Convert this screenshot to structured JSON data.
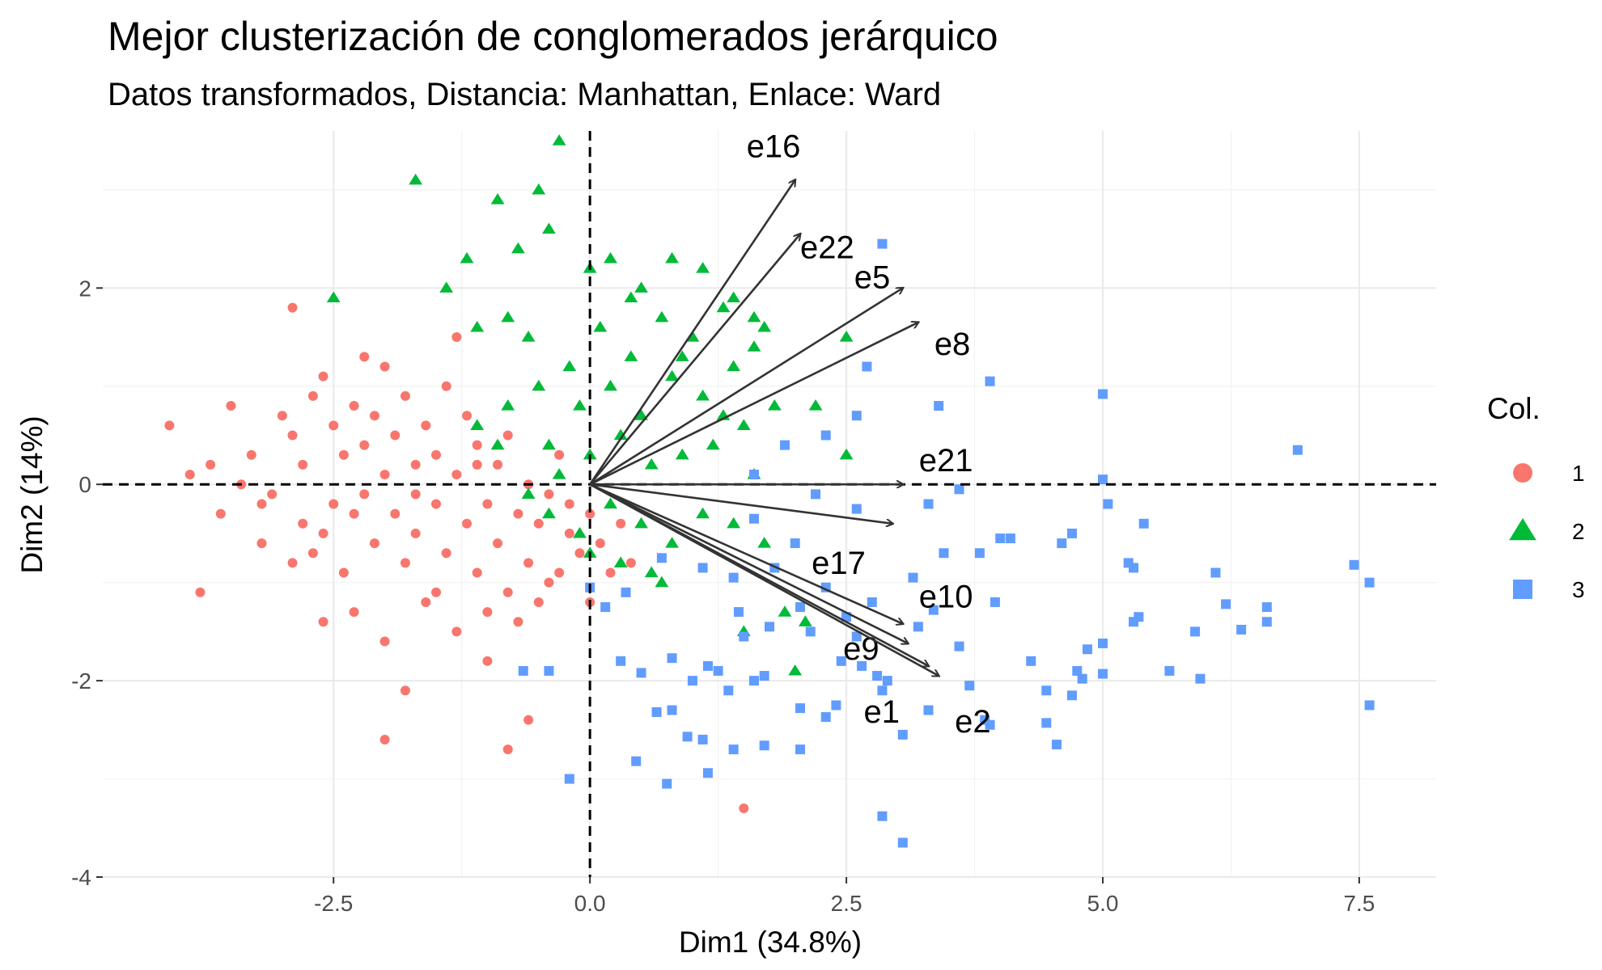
{
  "chart_data": {
    "type": "scatter",
    "title": "Mejor clusterización de conglomerados jerárquico",
    "subtitle": "Datos transformados, Distancia: Manhattan, Enlace: Ward",
    "xlabel": "Dim1 (34.8%)",
    "ylabel": "Dim2 (14%)",
    "xlim": [
      -4.75,
      8.25
    ],
    "ylim": [
      -4.0,
      3.6
    ],
    "x_ticks": [
      -2.5,
      0.0,
      2.5,
      5.0,
      7.5
    ],
    "x_tick_labels": [
      "-2.5",
      "0.0",
      "2.5",
      "5.0",
      "7.5"
    ],
    "y_ticks": [
      -4,
      -2,
      0,
      2
    ],
    "y_tick_labels": [
      "-4",
      "-2",
      "0",
      "2"
    ],
    "grid": true,
    "reference_lines": {
      "x": 0,
      "y": 0,
      "style": "dashed"
    },
    "legend": {
      "title": "Col.",
      "position": "right"
    },
    "series": [
      {
        "name": "1",
        "shape": "circle",
        "color": "#F8766D",
        "points": [
          [
            -4.1,
            0.6
          ],
          [
            -3.9,
            0.1
          ],
          [
            -3.7,
            0.2
          ],
          [
            -3.6,
            -0.3
          ],
          [
            -3.8,
            -1.1
          ],
          [
            -3.5,
            0.8
          ],
          [
            -3.3,
            0.3
          ],
          [
            -3.2,
            -0.6
          ],
          [
            -3.1,
            -0.1
          ],
          [
            -3.0,
            0.7
          ],
          [
            -2.9,
            -0.8
          ],
          [
            -2.9,
            0.5
          ],
          [
            -2.8,
            -0.4
          ],
          [
            -2.8,
            0.2
          ],
          [
            -2.7,
            0.9
          ],
          [
            -2.6,
            1.1
          ],
          [
            -2.6,
            -0.5
          ],
          [
            -2.5,
            0.6
          ],
          [
            -2.5,
            -0.2
          ],
          [
            -2.4,
            -0.9
          ],
          [
            -2.4,
            0.3
          ],
          [
            -2.3,
            0.8
          ],
          [
            -2.3,
            -1.3
          ],
          [
            -2.2,
            -0.1
          ],
          [
            -2.2,
            0.4
          ],
          [
            -2.1,
            0.7
          ],
          [
            -2.1,
            -0.6
          ],
          [
            -2.0,
            -1.6
          ],
          [
            -2.0,
            0.1
          ],
          [
            -2.0,
            1.2
          ],
          [
            -1.9,
            -0.3
          ],
          [
            -1.9,
            0.5
          ],
          [
            -1.8,
            -0.8
          ],
          [
            -1.8,
            0.9
          ],
          [
            -1.8,
            -2.1
          ],
          [
            -1.7,
            0.2
          ],
          [
            -1.7,
            -0.5
          ],
          [
            -1.6,
            -1.2
          ],
          [
            -1.6,
            0.6
          ],
          [
            -1.5,
            -0.2
          ],
          [
            -1.5,
            0.3
          ],
          [
            -1.4,
            -0.7
          ],
          [
            -1.4,
            1.0
          ],
          [
            -1.3,
            -1.5
          ],
          [
            -1.3,
            0.1
          ],
          [
            -1.2,
            -0.4
          ],
          [
            -1.2,
            0.7
          ],
          [
            -1.1,
            -0.9
          ],
          [
            -1.1,
            0.4
          ],
          [
            -1.0,
            -1.8
          ],
          [
            -1.0,
            -0.2
          ],
          [
            -0.9,
            0.2
          ],
          [
            -0.9,
            -0.6
          ],
          [
            -0.8,
            -1.1
          ],
          [
            -0.8,
            0.5
          ],
          [
            -0.7,
            -0.3
          ],
          [
            -0.7,
            -1.4
          ],
          [
            -0.6,
            0.0
          ],
          [
            -0.6,
            -0.8
          ],
          [
            -0.5,
            -0.4
          ],
          [
            -0.4,
            -0.1
          ],
          [
            -0.4,
            -1.0
          ],
          [
            -0.3,
            0.3
          ],
          [
            -0.2,
            -0.5
          ],
          [
            -0.2,
            -0.2
          ],
          [
            -0.1,
            -0.7
          ],
          [
            0.0,
            -0.3
          ],
          [
            0.1,
            -0.6
          ],
          [
            0.2,
            -0.9
          ],
          [
            0.3,
            -0.4
          ],
          [
            -2.9,
            1.8
          ],
          [
            -2.2,
            1.3
          ],
          [
            -2.0,
            -2.6
          ],
          [
            -1.3,
            1.5
          ],
          [
            -0.8,
            -2.7
          ],
          [
            -0.6,
            -2.4
          ],
          [
            1.5,
            -3.3
          ],
          [
            -3.2,
            -0.2
          ],
          [
            -2.6,
            -1.4
          ],
          [
            -1.5,
            -1.1
          ],
          [
            -1.0,
            -1.3
          ],
          [
            -0.5,
            -1.2
          ],
          [
            -1.7,
            -0.1
          ],
          [
            -2.7,
            -0.7
          ],
          [
            -3.4,
            0.0
          ],
          [
            -2.3,
            -0.3
          ],
          [
            -1.1,
            0.2
          ],
          [
            -0.3,
            -0.9
          ],
          [
            0.0,
            -1.2
          ],
          [
            0.4,
            -0.8
          ]
        ]
      },
      {
        "name": "2",
        "shape": "triangle",
        "color": "#00BA38",
        "points": [
          [
            -0.3,
            3.5
          ],
          [
            -1.7,
            3.1
          ],
          [
            -0.9,
            2.9
          ],
          [
            -0.5,
            3.0
          ],
          [
            -0.7,
            2.4
          ],
          [
            -0.4,
            2.6
          ],
          [
            -1.2,
            2.3
          ],
          [
            -2.5,
            1.9
          ],
          [
            -1.4,
            2.0
          ],
          [
            -0.8,
            1.7
          ],
          [
            -1.1,
            1.6
          ],
          [
            -0.6,
            1.5
          ],
          [
            0.0,
            2.2
          ],
          [
            0.2,
            2.3
          ],
          [
            0.5,
            2.0
          ],
          [
            0.8,
            2.3
          ],
          [
            1.1,
            2.2
          ],
          [
            1.4,
            1.9
          ],
          [
            1.6,
            1.7
          ],
          [
            1.7,
            1.6
          ],
          [
            1.3,
            1.8
          ],
          [
            1.0,
            1.5
          ],
          [
            0.7,
            1.7
          ],
          [
            0.4,
            1.3
          ],
          [
            0.1,
            1.6
          ],
          [
            -0.2,
            1.2
          ],
          [
            -0.5,
            1.0
          ],
          [
            -0.8,
            0.8
          ],
          [
            -1.1,
            0.6
          ],
          [
            -0.4,
            0.4
          ],
          [
            -0.1,
            0.8
          ],
          [
            0.2,
            1.0
          ],
          [
            0.5,
            0.7
          ],
          [
            0.8,
            1.1
          ],
          [
            1.1,
            0.9
          ],
          [
            1.4,
            1.2
          ],
          [
            1.6,
            1.4
          ],
          [
            1.8,
            0.8
          ],
          [
            1.5,
            0.6
          ],
          [
            1.2,
            0.4
          ],
          [
            0.9,
            0.3
          ],
          [
            0.6,
            0.2
          ],
          [
            0.3,
            0.5
          ],
          [
            0.0,
            0.3
          ],
          [
            -0.3,
            0.1
          ],
          [
            -0.6,
            -0.1
          ],
          [
            -0.9,
            0.4
          ],
          [
            -0.4,
            -0.3
          ],
          [
            -0.1,
            -0.5
          ],
          [
            0.2,
            -0.2
          ],
          [
            0.5,
            -0.4
          ],
          [
            0.8,
            -0.6
          ],
          [
            1.1,
            -0.3
          ],
          [
            1.4,
            -0.4
          ],
          [
            1.7,
            -0.6
          ],
          [
            0.6,
            -0.9
          ],
          [
            0.3,
            -0.8
          ],
          [
            0.0,
            -0.7
          ],
          [
            1.9,
            -1.3
          ],
          [
            2.1,
            -1.4
          ],
          [
            2.5,
            1.5
          ],
          [
            2.2,
            0.8
          ],
          [
            2.5,
            0.3
          ],
          [
            1.5,
            -1.5
          ],
          [
            2.0,
            -1.9
          ],
          [
            0.7,
            -1.0
          ],
          [
            0.9,
            1.3
          ],
          [
            1.3,
            0.7
          ],
          [
            0.4,
            1.9
          ],
          [
            1.6,
            0.1
          ]
        ]
      },
      {
        "name": "3",
        "shape": "square",
        "color": "#619CFF",
        "points": [
          [
            2.85,
            2.45
          ],
          [
            2.7,
            1.2
          ],
          [
            2.6,
            0.7
          ],
          [
            3.4,
            0.8
          ],
          [
            3.9,
            1.05
          ],
          [
            5.0,
            0.92
          ],
          [
            6.9,
            0.35
          ],
          [
            2.3,
            0.5
          ],
          [
            1.9,
            0.4
          ],
          [
            1.6,
            0.1
          ],
          [
            2.2,
            -0.1
          ],
          [
            2.6,
            -0.25
          ],
          [
            3.3,
            -0.2
          ],
          [
            3.6,
            -0.05
          ],
          [
            4.1,
            -0.55
          ],
          [
            5.0,
            0.05
          ],
          [
            5.05,
            -0.2
          ],
          [
            5.4,
            -0.4
          ],
          [
            4.7,
            -0.5
          ],
          [
            4.6,
            -0.6
          ],
          [
            5.25,
            -0.8
          ],
          [
            5.3,
            -0.85
          ],
          [
            7.45,
            -0.82
          ],
          [
            7.6,
            -1.0
          ],
          [
            6.2,
            -1.22
          ],
          [
            6.6,
            -1.25
          ],
          [
            6.6,
            -1.4
          ],
          [
            6.35,
            -1.48
          ],
          [
            5.35,
            -1.35
          ],
          [
            5.3,
            -1.4
          ],
          [
            5.0,
            -1.62
          ],
          [
            4.85,
            -1.68
          ],
          [
            4.75,
            -1.9
          ],
          [
            5.0,
            -1.93
          ],
          [
            5.65,
            -1.9
          ],
          [
            5.95,
            -1.98
          ],
          [
            7.6,
            -2.25
          ],
          [
            4.45,
            -2.1
          ],
          [
            4.7,
            -2.15
          ],
          [
            4.8,
            -1.98
          ],
          [
            4.45,
            -2.43
          ],
          [
            4.55,
            -2.65
          ],
          [
            3.85,
            -2.4
          ],
          [
            3.9,
            -2.45
          ],
          [
            3.3,
            -2.3
          ],
          [
            3.05,
            -2.55
          ],
          [
            2.85,
            -2.1
          ],
          [
            2.9,
            -2.0
          ],
          [
            2.8,
            -1.95
          ],
          [
            2.65,
            -1.85
          ],
          [
            2.4,
            -2.25
          ],
          [
            2.3,
            -2.37
          ],
          [
            2.05,
            -2.28
          ],
          [
            1.7,
            -1.95
          ],
          [
            1.6,
            -2.0
          ],
          [
            1.35,
            -2.1
          ],
          [
            1.15,
            -1.85
          ],
          [
            1.25,
            -1.9
          ],
          [
            1.0,
            -2.0
          ],
          [
            0.8,
            -1.77
          ],
          [
            0.5,
            -1.92
          ],
          [
            0.3,
            -1.8
          ],
          [
            0.65,
            -2.32
          ],
          [
            0.8,
            -2.3
          ],
          [
            0.95,
            -2.57
          ],
          [
            1.1,
            -2.6
          ],
          [
            1.4,
            -2.7
          ],
          [
            1.15,
            -2.94
          ],
          [
            0.75,
            -3.05
          ],
          [
            0.45,
            -2.82
          ],
          [
            -0.2,
            -3.0
          ],
          [
            -0.4,
            -1.9
          ],
          [
            -0.65,
            -1.9
          ],
          [
            2.05,
            -2.7
          ],
          [
            1.7,
            -2.66
          ],
          [
            2.85,
            -3.38
          ],
          [
            3.05,
            -3.65
          ],
          [
            3.2,
            -1.45
          ],
          [
            3.35,
            -1.28
          ],
          [
            3.6,
            -1.65
          ],
          [
            3.95,
            -1.2
          ],
          [
            3.15,
            -0.95
          ],
          [
            3.45,
            -0.7
          ],
          [
            3.8,
            -0.7
          ],
          [
            4.0,
            -0.55
          ],
          [
            2.75,
            -1.2
          ],
          [
            2.5,
            -1.35
          ],
          [
            2.6,
            -1.55
          ],
          [
            2.45,
            -1.8
          ],
          [
            2.15,
            -1.5
          ],
          [
            2.05,
            -1.25
          ],
          [
            1.75,
            -1.45
          ],
          [
            1.5,
            -1.55
          ],
          [
            1.45,
            -1.3
          ],
          [
            1.4,
            -0.95
          ],
          [
            1.1,
            -0.85
          ],
          [
            0.7,
            -0.75
          ],
          [
            0.35,
            -1.1
          ],
          [
            0.15,
            -1.25
          ],
          [
            0.0,
            -1.05
          ],
          [
            2.0,
            -0.6
          ],
          [
            1.6,
            -0.35
          ],
          [
            5.9,
            -1.5
          ],
          [
            6.1,
            -0.9
          ],
          [
            4.3,
            -1.8
          ],
          [
            3.7,
            -2.05
          ],
          [
            2.3,
            -1.05
          ],
          [
            1.8,
            -0.85
          ]
        ]
      }
    ],
    "arrows": [
      {
        "label": "e16",
        "x": 2.0,
        "y": 3.1
      },
      {
        "label": "e22",
        "x": 2.05,
        "y": 2.55
      },
      {
        "label": "e5",
        "x": 3.05,
        "y": 2.0
      },
      {
        "label": "e8",
        "x": 3.2,
        "y": 1.65
      },
      {
        "label": "e21",
        "x": 3.05,
        "y": 0.0
      },
      {
        "label": "e17",
        "x": 2.95,
        "y": -0.4
      },
      {
        "label": "e10",
        "x": 3.05,
        "y": -1.42
      },
      {
        "label": "e9",
        "x": 3.1,
        "y": -1.62
      },
      {
        "label": "e1",
        "x": 3.3,
        "y": -1.85
      },
      {
        "label": "e2",
        "x": 3.4,
        "y": -1.95
      }
    ]
  }
}
